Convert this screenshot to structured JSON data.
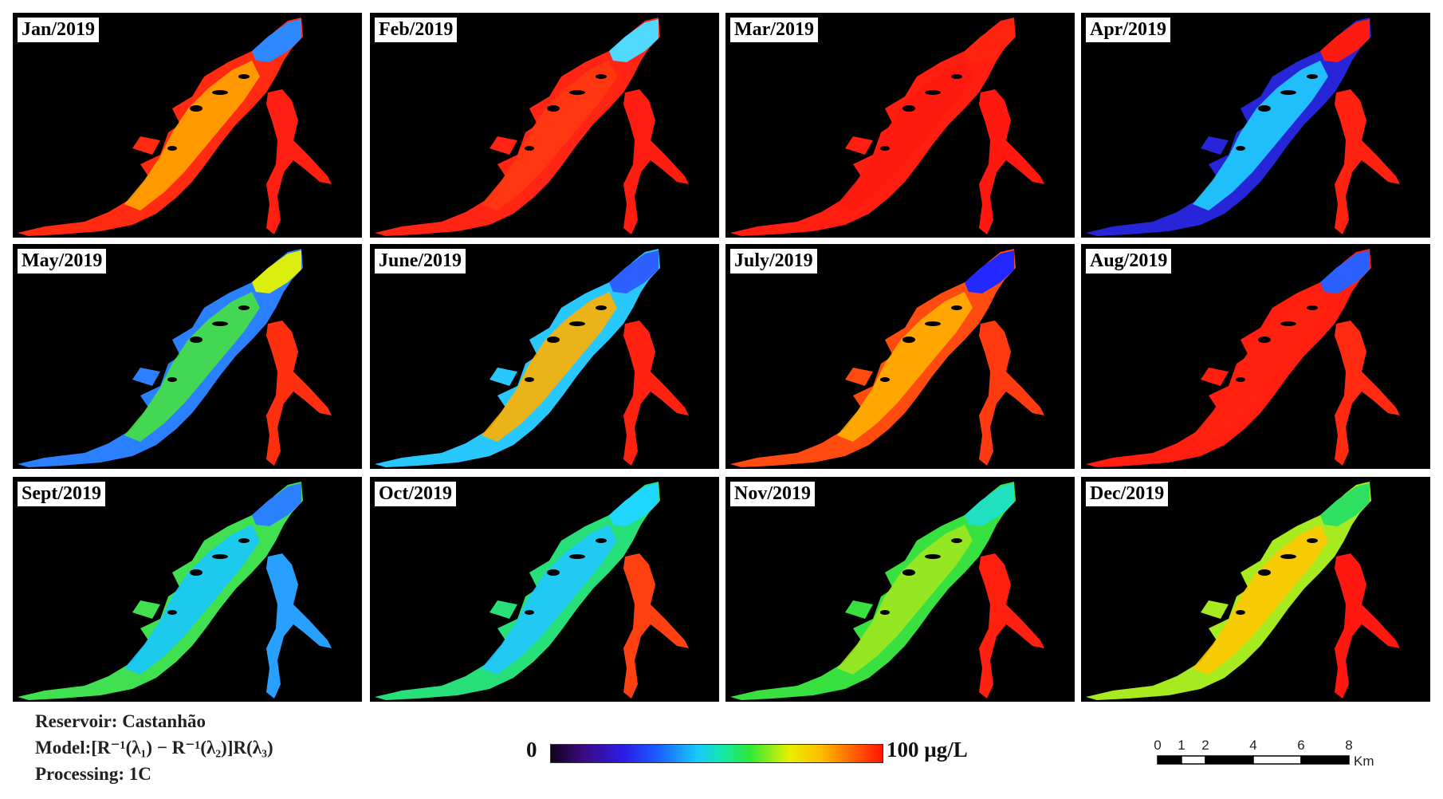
{
  "panels": [
    {
      "label": "Jan/2019",
      "palette": {
        "trunk": "#ff2a10",
        "mid": "#ffa400",
        "tip": "#2e88ff",
        "branch": "#ff1e12"
      }
    },
    {
      "label": "Feb/2019",
      "palette": {
        "trunk": "#ff2414",
        "mid": "#ff3a10",
        "tip": "#50d8ff",
        "branch": "#ff1c10"
      }
    },
    {
      "label": "Mar/2019",
      "palette": {
        "trunk": "#ff1e10",
        "mid": "#ff1a10",
        "tip": "#ff2410",
        "branch": "#ff1810"
      }
    },
    {
      "label": "Apr/2019",
      "palette": {
        "trunk": "#2626d8",
        "mid": "#20d0ff",
        "tip": "#ff1a10",
        "branch": "#ff2210"
      }
    },
    {
      "label": "May/2019",
      "palette": {
        "trunk": "#2a80ff",
        "mid": "#46e040",
        "tip": "#dcee10",
        "branch": "#ff3010"
      }
    },
    {
      "label": "June/2019",
      "palette": {
        "trunk": "#28c8ff",
        "mid": "#ffb000",
        "tip": "#2e60ff",
        "branch": "#ff2210"
      }
    },
    {
      "label": "July/2019",
      "palette": {
        "trunk": "#ff4a10",
        "mid": "#ffb000",
        "tip": "#2228ff",
        "branch": "#ff3a10"
      }
    },
    {
      "label": "Aug/2019",
      "palette": {
        "trunk": "#ff1e10",
        "mid": "#ff2410",
        "tip": "#2a60ff",
        "branch": "#ff2a10"
      }
    },
    {
      "label": "Sept/2019",
      "palette": {
        "trunk": "#40e050",
        "mid": "#18c8ff",
        "tip": "#2a80ff",
        "branch": "#28a0ff"
      }
    },
    {
      "label": "Oct/2019",
      "palette": {
        "trunk": "#28e07a",
        "mid": "#20c8ff",
        "tip": "#20d8ff",
        "branch": "#ff4010"
      }
    },
    {
      "label": "Nov/2019",
      "palette": {
        "trunk": "#38e040",
        "mid": "#a0e820",
        "tip": "#20e0c0",
        "branch": "#ff2010"
      }
    },
    {
      "label": "Dec/2019",
      "palette": {
        "trunk": "#a8ea20",
        "mid": "#ffc800",
        "tip": "#30e060",
        "branch": "#ff1810"
      }
    }
  ],
  "legend": {
    "reservoir": "Reservoir: Castanhão",
    "model": "Model:[R⁻¹(λ₁) − R⁻¹(λ₂)]R(λ₃)",
    "processing": "Processing: 1C"
  },
  "colorbar": {
    "min_label": "0",
    "max_label": "100 µg/L"
  },
  "scalebar": {
    "ticks": [
      "0",
      "1",
      "2",
      "4",
      "6",
      "8"
    ],
    "tick_km": [
      0,
      1,
      2,
      4,
      6,
      8
    ],
    "unit": "Km"
  }
}
